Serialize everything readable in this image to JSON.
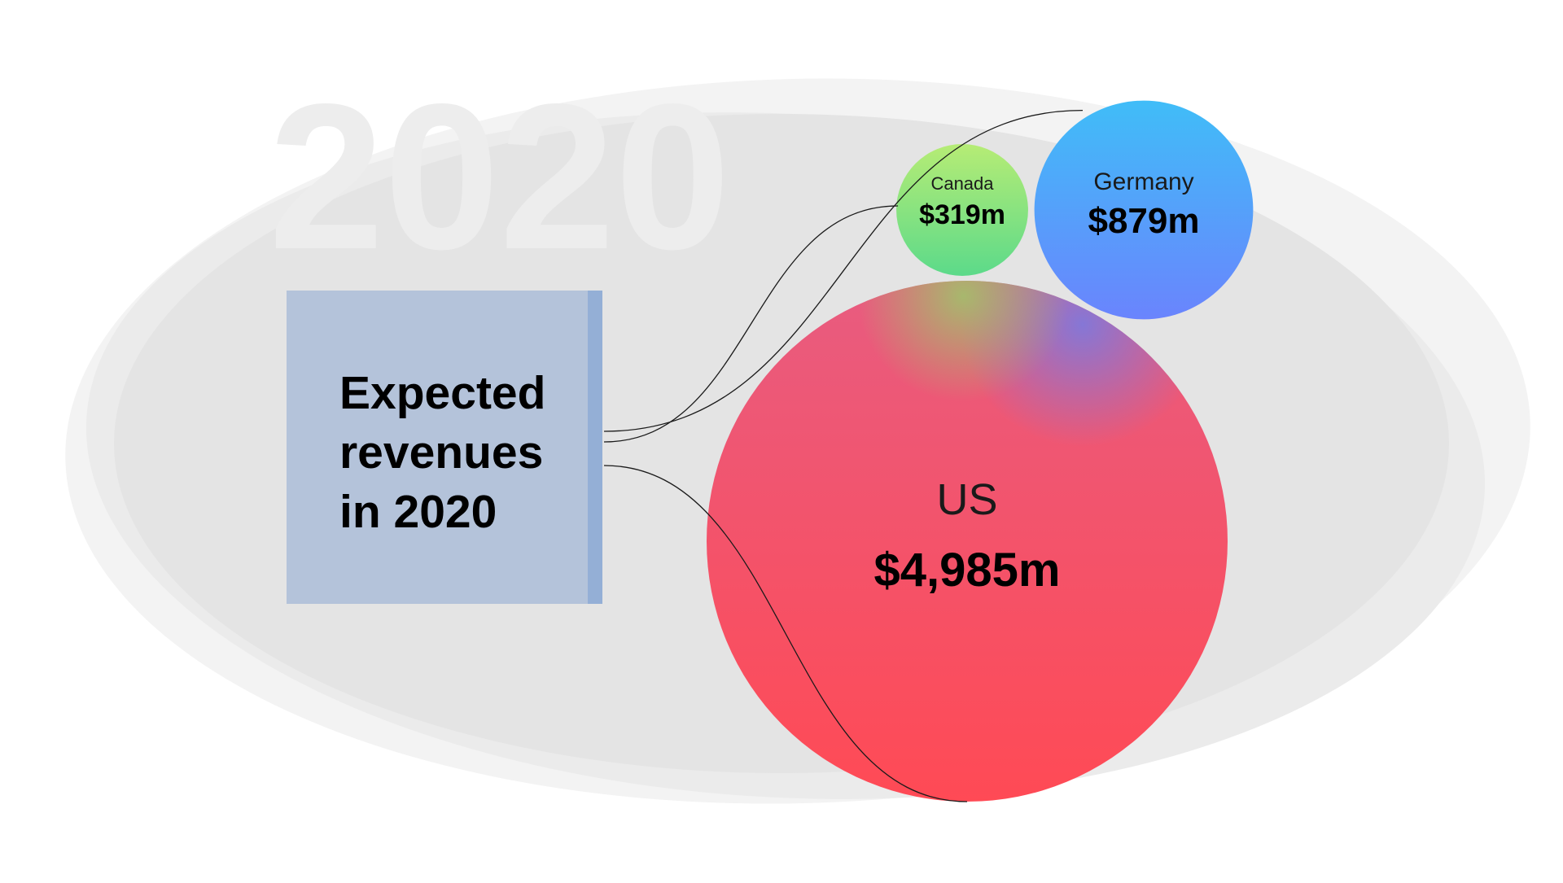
{
  "chart_data": {
    "type": "bubble",
    "watermark": "2020",
    "title": "Expected revenues in 2020",
    "title_lines": [
      "Expected",
      "revenues",
      "in 2020"
    ],
    "unit": "$m",
    "bubbles": [
      {
        "name": "US",
        "value": 4985,
        "label": "$4,985m",
        "color_top": "#E85C80",
        "color_bottom": "#FF4A55"
      },
      {
        "name": "Germany",
        "value": 879,
        "label": "$879m",
        "color_top": "#40BDF8",
        "color_bottom": "#6A84FD"
      },
      {
        "name": "Canada",
        "value": 319,
        "label": "$319m",
        "color_top": "#B6EC75",
        "color_bottom": "#5CDA8A"
      }
    ]
  },
  "colors": {
    "background": "#FFFFFF",
    "ellipse": "#E4E4E4",
    "watermark": "#EDEDED",
    "title_box": "#B4C3DA",
    "title_box_edge": "#94AFD6",
    "connector": "#1A1A1A"
  }
}
